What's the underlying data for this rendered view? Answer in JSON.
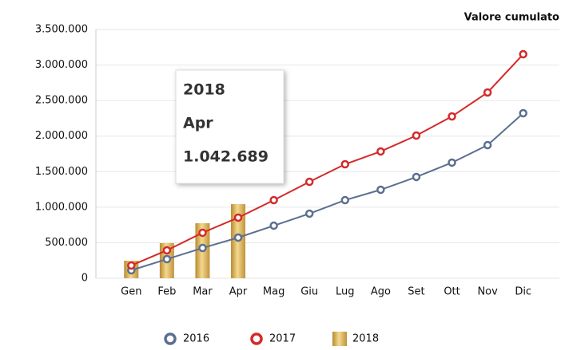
{
  "chart_data": {
    "type": "line",
    "title": "Valore cumulato",
    "categories": [
      "Gen",
      "Feb",
      "Mar",
      "Apr",
      "Mag",
      "Giu",
      "Lug",
      "Ago",
      "Set",
      "Ott",
      "Nov",
      "Dic"
    ],
    "series": [
      {
        "name": "2016",
        "type": "line",
        "color": "#5b6f8f",
        "values": [
          112000,
          269000,
          426000,
          572000,
          740000,
          909000,
          1099000,
          1245000,
          1425000,
          1627000,
          1873000,
          2322000
        ]
      },
      {
        "name": "2017",
        "type": "line",
        "color": "#d42a2a",
        "values": [
          180000,
          393000,
          640000,
          853000,
          1099000,
          1357000,
          1604000,
          1784000,
          2008000,
          2277000,
          2614000,
          3152000
        ]
      },
      {
        "name": "2018",
        "type": "bar",
        "color": "#d9b25a",
        "values": [
          247000,
          494000,
          774000,
          1042689,
          null,
          null,
          null,
          null,
          null,
          null,
          null,
          null
        ],
        "value_labels": [
          null,
          null,
          null,
          "1.042.689",
          null,
          null,
          null,
          null,
          null,
          null,
          null,
          null
        ]
      }
    ],
    "ylim": [
      0,
      3500000
    ],
    "yticks": [
      0,
      {
        "value": 500000,
        "label": "500.000"
      },
      {
        "value": 1000000,
        "label": "1.000.000"
      },
      {
        "value": 1500000,
        "label": "1.500.000"
      },
      {
        "value": 2000000,
        "label": "2.000.000"
      },
      {
        "value": 2500000,
        "label": "2.500.000"
      },
      {
        "value": 3000000,
        "label": "3.000.000"
      },
      {
        "value": 3500000,
        "label": "3.500.000"
      }
    ],
    "grid": true,
    "legend": "bottom"
  }
}
